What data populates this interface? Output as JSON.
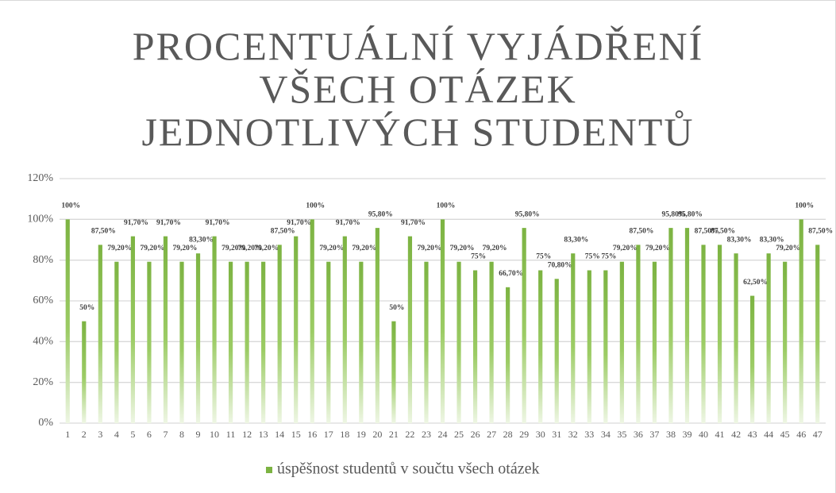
{
  "chart_data": {
    "type": "bar",
    "title": "PROCENTUÁLNÍ VYJÁDŘENÍ VŠECH OTÁZEK JEDNOTLIVÝCH STUDENTŮ",
    "categories": [
      "1",
      "2",
      "3",
      "4",
      "5",
      "6",
      "7",
      "8",
      "9",
      "10",
      "11",
      "12",
      "13",
      "14",
      "15",
      "16",
      "17",
      "18",
      "19",
      "20",
      "21",
      "22",
      "23",
      "24",
      "25",
      "26",
      "27",
      "28",
      "29",
      "30",
      "31",
      "32",
      "33",
      "34",
      "35",
      "36",
      "37",
      "38",
      "39",
      "40",
      "41",
      "42",
      "43",
      "44",
      "45",
      "46",
      "47"
    ],
    "series": [
      {
        "name": "úspěšnost studentů v součtu všech otázek",
        "color": "#7cb342",
        "values": [
          100,
          50,
          87.5,
          79.2,
          91.7,
          79.2,
          91.7,
          79.2,
          83.3,
          91.7,
          79.2,
          79.2,
          79.2,
          87.5,
          91.7,
          100,
          79.2,
          91.7,
          79.2,
          95.8,
          50,
          91.7,
          79.2,
          100,
          79.2,
          75,
          79.2,
          66.7,
          95.8,
          75,
          70.8,
          83.3,
          75,
          75,
          79.2,
          87.5,
          79.2,
          95.8,
          95.8,
          87.5,
          87.5,
          83.3,
          62.5,
          83.3,
          79.2,
          100,
          87.5
        ],
        "value_labels": [
          "100%",
          "50%",
          "87,50%",
          "79,20%",
          "91,70%",
          "79,20%",
          "91,70%",
          "79,20%",
          "83,30%",
          "91,70%",
          "79,20%",
          "79,20%",
          "79,20%",
          "87,50%",
          "91,70%",
          "100%",
          "79,20%",
          "91,70%",
          "79,20%",
          "95,80%",
          "50%",
          "91,70%",
          "79,20%",
          "100%",
          "79,20%",
          "75%",
          "79,20%",
          "66,70%",
          "95,80%",
          "75%",
          "70,80%",
          "83,30%",
          "75%",
          "75%",
          "79,20%",
          "87,50%",
          "79,20%",
          "95,80%",
          "95,80%",
          "87,50%",
          "87,50%",
          "83,30%",
          "62,50%",
          "83,30%",
          "79,20%",
          "100%",
          "87,50%"
        ]
      }
    ],
    "ylim": [
      0,
      120
    ],
    "yticks": [
      {
        "value": 0,
        "label": "0%"
      },
      {
        "value": 20,
        "label": "20%"
      },
      {
        "value": 40,
        "label": "40%"
      },
      {
        "value": 60,
        "label": "60%"
      },
      {
        "value": 80,
        "label": "80%"
      },
      {
        "value": 100,
        "label": "100%"
      },
      {
        "value": 120,
        "label": "120%"
      }
    ],
    "grid": true,
    "legend": "bottom"
  }
}
